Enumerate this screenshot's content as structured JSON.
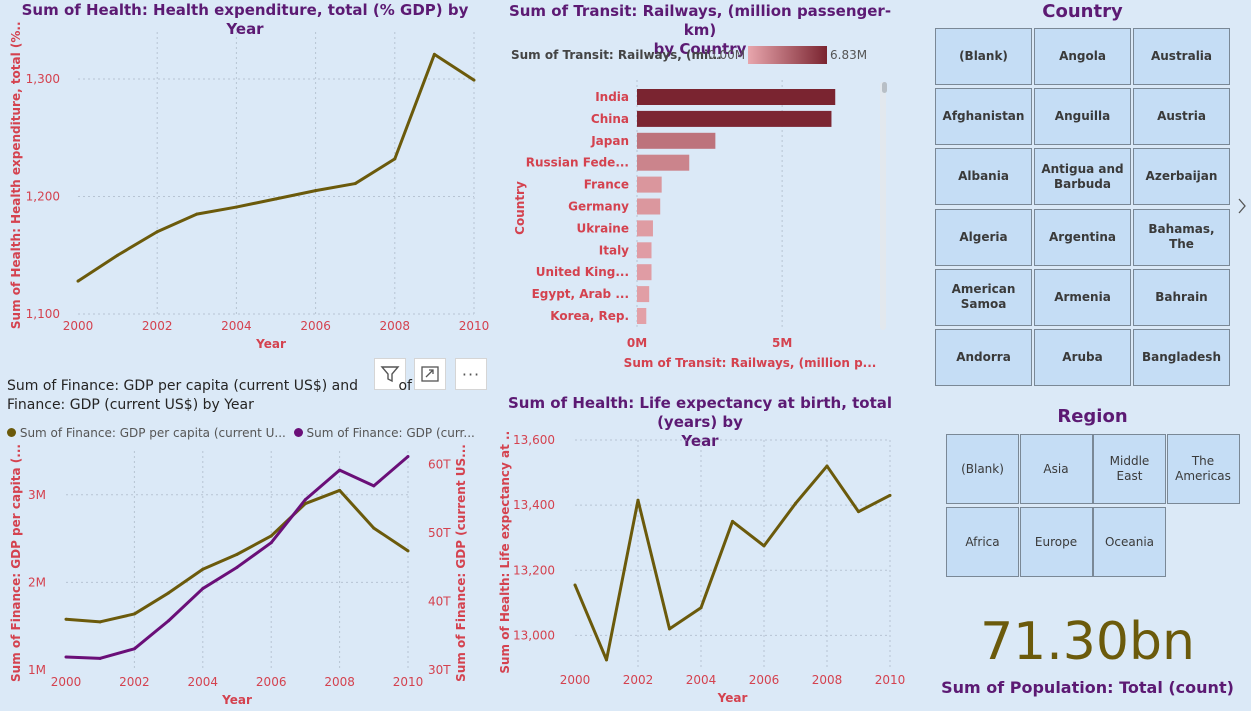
{
  "colors": {
    "olive": "#6b5a0b",
    "purple": "#6a0f78",
    "accent": "#d4424f",
    "title": "#5c1a73",
    "bar_dark": "#7a2430",
    "bar_light": "#e8a6ad"
  },
  "chart1": {
    "title": "Sum of Health: Health expenditure, total (% GDP) by Year",
    "xlabel": "Year",
    "ylabel": "Sum of Health: Health expenditure, total (%...",
    "yticks": [
      "1,100",
      "1,200",
      "1,300"
    ],
    "xticks": [
      "2000",
      "2002",
      "2004",
      "2006",
      "2008",
      "2010"
    ]
  },
  "chart2": {
    "title_line1": "Sum of Transit: Railways, (million passenger-km)",
    "title_line2": "by Country",
    "legend_label": "Sum of Transit: Railways, (mi...",
    "legend_min": "0.00M",
    "legend_max": "6.83M",
    "ylabel": "Country",
    "xlabel": "Sum of Transit: Railways, (million p...",
    "xticks": [
      "0M",
      "5M"
    ]
  },
  "chart3": {
    "title_line1": "Sum of Finance: GDP per capita (current US$) and",
    "title_line1_tail": "of",
    "title_line2": "Finance: GDP (current US$) by Year",
    "legend1": "Sum of Finance: GDP per capita (current U...",
    "legend2": "Sum of Finance: GDP (curr...",
    "ylabel_left": "Sum of Finance: GDP per capita (...",
    "ylabel_right": "Sum of Finance: GDP (current US...",
    "xlabel": "Year",
    "yticks_left": [
      "1M",
      "2M",
      "3M"
    ],
    "yticks_right": [
      "30T",
      "40T",
      "50T",
      "60T"
    ],
    "xticks": [
      "2000",
      "2002",
      "2004",
      "2006",
      "2008",
      "2010"
    ]
  },
  "chart4": {
    "title_line1": "Sum of Health: Life expectancy at birth, total (years) by",
    "title_line2": "Year",
    "xlabel": "Year",
    "ylabel": "Sum of Health: Life expectancy at ...",
    "yticks": [
      "13,000",
      "13,200",
      "13,400",
      "13,600"
    ],
    "xticks": [
      "2000",
      "2002",
      "2004",
      "2006",
      "2008",
      "2010"
    ]
  },
  "country_slicer": {
    "title": "Country",
    "items": [
      "(Blank)",
      "Angola",
      "Australia",
      "Afghanistan",
      "Anguilla",
      "Austria",
      "Albania",
      "Antigua and Barbuda",
      "Azerbaijan",
      "Algeria",
      "Argentina",
      "Bahamas, The",
      "American Samoa",
      "Armenia",
      "Bahrain",
      "Andorra",
      "Aruba",
      "Bangladesh"
    ]
  },
  "region_slicer": {
    "title": "Region",
    "items": [
      "(Blank)",
      "Asia",
      "Middle East",
      "The Americas",
      "Africa",
      "Europe",
      "Oceania"
    ]
  },
  "card": {
    "value": "71.30bn",
    "label": "Sum of Population: Total (count)"
  },
  "toolbar": {
    "filter_icon": "filter-icon",
    "focus_icon": "focus-mode-icon",
    "more_icon": "more-options-icon",
    "more_glyph": "···"
  },
  "chart_data": [
    {
      "type": "line",
      "title": "Sum of Health: Health expenditure, total (% GDP) by Year",
      "xlabel": "Year",
      "ylabel": "Sum of Health: Health expenditure, total (%...",
      "ylim": [
        1100,
        1340
      ],
      "x": [
        2000,
        2001,
        2002,
        2003,
        2004,
        2005,
        2006,
        2007,
        2008,
        2009,
        2010
      ],
      "series": [
        {
          "values": [
            1128,
            1150,
            1170,
            1185,
            1191,
            1198,
            1205,
            1211,
            1232,
            1321,
            1299
          ]
        }
      ]
    },
    {
      "type": "bar",
      "title": "Sum of Transit: Railways, (million passenger-km) by Country",
      "xlabel": "Sum of Transit: Railways, (million p...",
      "ylabel": "Country",
      "categories": [
        "India",
        "China",
        "Japan",
        "Russian Fede...",
        "France",
        "Germany",
        "Ukraine",
        "Italy",
        "United King...",
        "Egypt, Arab ...",
        "Korea, Rep."
      ],
      "values": [
        6.83,
        6.7,
        2.7,
        1.8,
        0.85,
        0.8,
        0.55,
        0.5,
        0.5,
        0.42,
        0.32
      ],
      "xlim": [
        0,
        8.2
      ],
      "legend_range": [
        0,
        6.83
      ]
    },
    {
      "type": "line",
      "title": "Sum of Finance: GDP per capita (current US$) and Sum of Finance: GDP (current US$) by Year",
      "xlabel": "Year",
      "x": [
        2000,
        2001,
        2002,
        2003,
        2004,
        2005,
        2006,
        2007,
        2008,
        2009,
        2010
      ],
      "series": [
        {
          "name": "Sum of Finance: GDP per capita (current U...",
          "axis": "left",
          "ylim": [
            1.0,
            3.5
          ],
          "values": [
            1.58,
            1.55,
            1.64,
            1.88,
            2.15,
            2.32,
            2.53,
            2.9,
            3.05,
            2.62,
            2.36
          ]
        },
        {
          "name": "Sum of Finance: GDP (curr...",
          "axis": "right",
          "ylim": [
            30,
            62
          ],
          "values": [
            31.9,
            31.7,
            33.1,
            37.2,
            41.9,
            45.0,
            48.6,
            54.9,
            59.2,
            56.9,
            61.2
          ]
        }
      ]
    },
    {
      "type": "line",
      "title": "Sum of Health: Life expectancy at birth, total (years) by Year",
      "xlabel": "Year",
      "ylabel": "Sum of Health: Life expectancy at ...",
      "ylim": [
        12900,
        13600
      ],
      "x": [
        2000,
        2001,
        2002,
        2003,
        2004,
        2005,
        2006,
        2007,
        2008,
        2009,
        2010
      ],
      "series": [
        {
          "values": [
            13155,
            12925,
            13415,
            13020,
            13085,
            13350,
            13275,
            13405,
            13520,
            13380,
            13430
          ]
        }
      ]
    }
  ]
}
